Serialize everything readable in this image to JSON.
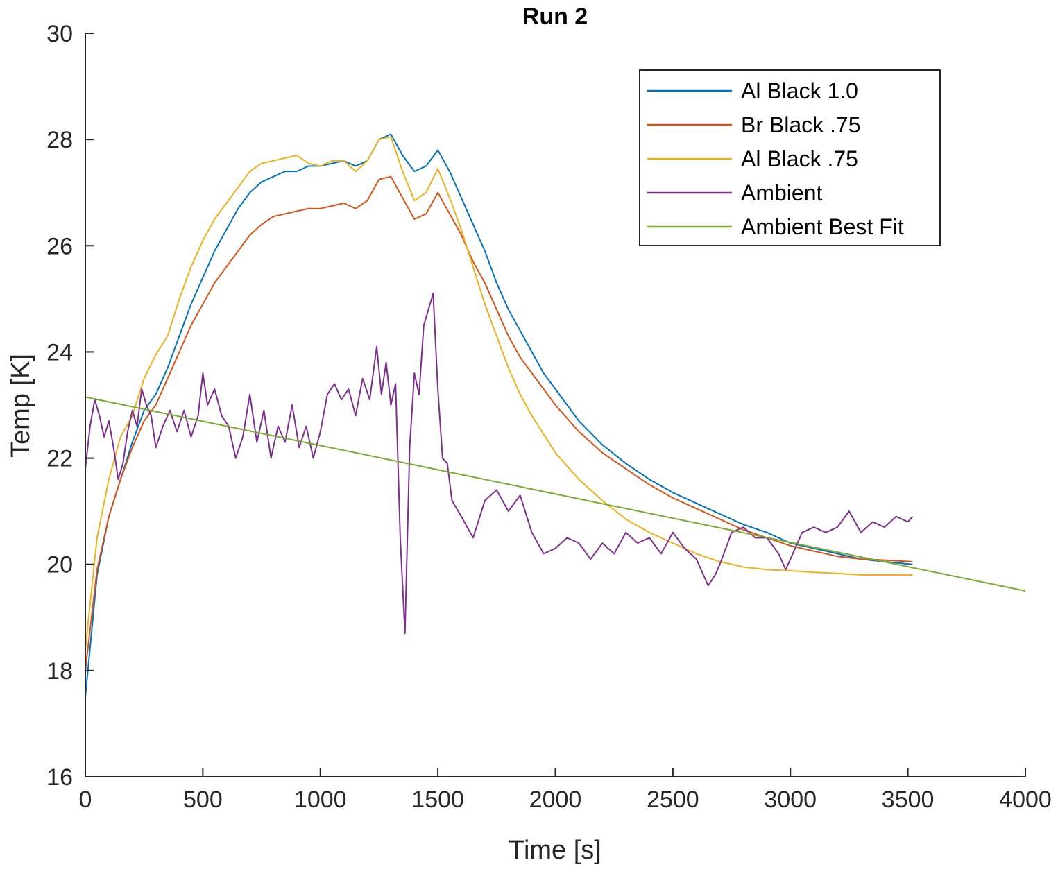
{
  "chart_data": {
    "type": "line",
    "title": "Run 2",
    "xlabel": "Time [s]",
    "ylabel": "Temp [K]",
    "xlim": [
      0,
      4000
    ],
    "ylim": [
      16,
      30
    ],
    "xticks": [
      0,
      500,
      1000,
      1500,
      2000,
      2500,
      3000,
      3500,
      4000
    ],
    "yticks": [
      16,
      18,
      20,
      22,
      24,
      26,
      28,
      30
    ],
    "grid": false,
    "legend_position": "top-right",
    "series": [
      {
        "name": "Al Black 1.0",
        "color": "#0072BD",
        "x": [
          0,
          50,
          100,
          150,
          200,
          250,
          300,
          350,
          400,
          450,
          500,
          550,
          600,
          650,
          700,
          750,
          800,
          850,
          900,
          950,
          1000,
          1050,
          1100,
          1150,
          1200,
          1250,
          1300,
          1350,
          1400,
          1450,
          1500,
          1550,
          1600,
          1650,
          1700,
          1750,
          1800,
          1850,
          1900,
          1950,
          2000,
          2100,
          2200,
          2300,
          2400,
          2500,
          2600,
          2700,
          2800,
          2900,
          3000,
          3100,
          3200,
          3300,
          3400,
          3520
        ],
        "y": [
          17.5,
          19.8,
          20.9,
          21.6,
          22.3,
          22.9,
          23.2,
          23.7,
          24.3,
          24.9,
          25.4,
          25.9,
          26.3,
          26.7,
          27.0,
          27.2,
          27.3,
          27.4,
          27.4,
          27.5,
          27.5,
          27.55,
          27.6,
          27.5,
          27.6,
          28.0,
          28.1,
          27.7,
          27.4,
          27.5,
          27.8,
          27.4,
          26.9,
          26.4,
          25.9,
          25.3,
          24.8,
          24.4,
          24.0,
          23.6,
          23.3,
          22.7,
          22.25,
          21.9,
          21.6,
          21.35,
          21.15,
          20.95,
          20.75,
          20.6,
          20.4,
          20.3,
          20.2,
          20.1,
          20.05,
          20.0
        ]
      },
      {
        "name": "Br Black .75",
        "color": "#D95319",
        "x": [
          0,
          50,
          100,
          150,
          200,
          250,
          300,
          350,
          400,
          450,
          500,
          550,
          600,
          650,
          700,
          750,
          800,
          850,
          900,
          950,
          1000,
          1050,
          1100,
          1150,
          1200,
          1250,
          1300,
          1350,
          1400,
          1450,
          1500,
          1550,
          1600,
          1650,
          1700,
          1750,
          1800,
          1850,
          1900,
          1950,
          2000,
          2100,
          2200,
          2300,
          2400,
          2500,
          2600,
          2700,
          2800,
          2900,
          3000,
          3100,
          3200,
          3300,
          3400,
          3520
        ],
        "y": [
          18.0,
          19.9,
          20.9,
          21.6,
          22.2,
          22.7,
          23.0,
          23.5,
          24.0,
          24.5,
          24.9,
          25.3,
          25.6,
          25.9,
          26.2,
          26.4,
          26.55,
          26.6,
          26.65,
          26.7,
          26.7,
          26.75,
          26.8,
          26.7,
          26.85,
          27.25,
          27.3,
          26.9,
          26.5,
          26.6,
          27.0,
          26.6,
          26.2,
          25.7,
          25.3,
          24.8,
          24.3,
          23.9,
          23.6,
          23.3,
          23.0,
          22.5,
          22.1,
          21.8,
          21.5,
          21.25,
          21.05,
          20.85,
          20.65,
          20.5,
          20.35,
          20.25,
          20.15,
          20.1,
          20.08,
          20.05
        ]
      },
      {
        "name": "Al Black .75",
        "color": "#EDB120",
        "x": [
          0,
          50,
          100,
          150,
          200,
          250,
          300,
          350,
          400,
          450,
          500,
          550,
          600,
          650,
          700,
          750,
          800,
          850,
          900,
          950,
          1000,
          1050,
          1100,
          1150,
          1200,
          1250,
          1300,
          1350,
          1400,
          1450,
          1500,
          1550,
          1600,
          1650,
          1700,
          1750,
          1800,
          1850,
          1900,
          1950,
          2000,
          2100,
          2200,
          2300,
          2400,
          2500,
          2600,
          2700,
          2800,
          2900,
          3000,
          3100,
          3200,
          3300,
          3400,
          3520
        ],
        "y": [
          18.4,
          20.5,
          21.6,
          22.4,
          22.8,
          23.5,
          23.95,
          24.3,
          25.0,
          25.6,
          26.1,
          26.5,
          26.8,
          27.1,
          27.4,
          27.55,
          27.6,
          27.65,
          27.7,
          27.55,
          27.5,
          27.6,
          27.6,
          27.4,
          27.6,
          28.0,
          28.05,
          27.4,
          26.85,
          27.0,
          27.45,
          26.9,
          26.3,
          25.6,
          24.9,
          24.3,
          23.7,
          23.2,
          22.8,
          22.45,
          22.1,
          21.6,
          21.2,
          20.85,
          20.6,
          20.4,
          20.2,
          20.05,
          19.95,
          19.9,
          19.88,
          19.85,
          19.83,
          19.8,
          19.8,
          19.8
        ]
      },
      {
        "name": "Ambient",
        "color": "#7E2F8E",
        "x": [
          0,
          20,
          40,
          60,
          80,
          100,
          120,
          140,
          160,
          180,
          200,
          220,
          240,
          260,
          280,
          300,
          330,
          360,
          390,
          420,
          450,
          480,
          500,
          520,
          550,
          580,
          610,
          640,
          670,
          700,
          730,
          760,
          790,
          820,
          850,
          880,
          910,
          940,
          970,
          1000,
          1030,
          1060,
          1090,
          1120,
          1150,
          1180,
          1210,
          1240,
          1260,
          1280,
          1300,
          1320,
          1340,
          1360,
          1380,
          1400,
          1420,
          1440,
          1460,
          1480,
          1500,
          1520,
          1540,
          1560,
          1600,
          1650,
          1700,
          1750,
          1800,
          1850,
          1900,
          1950,
          2000,
          2050,
          2100,
          2150,
          2200,
          2250,
          2300,
          2350,
          2400,
          2450,
          2500,
          2550,
          2600,
          2650,
          2680,
          2700,
          2750,
          2800,
          2850,
          2900,
          2950,
          2980,
          3000,
          3050,
          3100,
          3150,
          3200,
          3250,
          3300,
          3350,
          3400,
          3450,
          3500,
          3520
        ],
        "y": [
          21.8,
          22.6,
          23.1,
          22.8,
          22.4,
          22.7,
          22.2,
          21.6,
          21.9,
          22.5,
          22.9,
          22.6,
          23.3,
          23.0,
          22.8,
          22.2,
          22.6,
          22.9,
          22.5,
          22.9,
          22.4,
          22.8,
          23.6,
          23.0,
          23.3,
          22.8,
          22.6,
          22.0,
          22.4,
          23.2,
          22.3,
          22.9,
          22.0,
          22.6,
          22.3,
          23.0,
          22.2,
          22.6,
          22.0,
          22.5,
          23.2,
          23.4,
          23.1,
          23.3,
          22.8,
          23.5,
          23.1,
          24.1,
          23.2,
          23.8,
          23.0,
          23.4,
          20.5,
          18.7,
          22.2,
          23.6,
          23.2,
          24.5,
          24.8,
          25.1,
          23.3,
          22.0,
          21.9,
          21.2,
          20.9,
          20.5,
          21.2,
          21.4,
          21.0,
          21.3,
          20.6,
          20.2,
          20.3,
          20.5,
          20.4,
          20.1,
          20.4,
          20.2,
          20.6,
          20.4,
          20.5,
          20.2,
          20.6,
          20.3,
          20.1,
          19.6,
          19.8,
          20.0,
          20.6,
          20.7,
          20.5,
          20.5,
          20.2,
          19.9,
          20.1,
          20.6,
          20.7,
          20.6,
          20.7,
          21.0,
          20.6,
          20.8,
          20.7,
          20.9,
          20.8,
          20.9
        ]
      },
      {
        "name": "Ambient Best Fit",
        "color": "#77AC30",
        "x": [
          0,
          4000
        ],
        "y": [
          23.15,
          19.5
        ]
      }
    ]
  }
}
